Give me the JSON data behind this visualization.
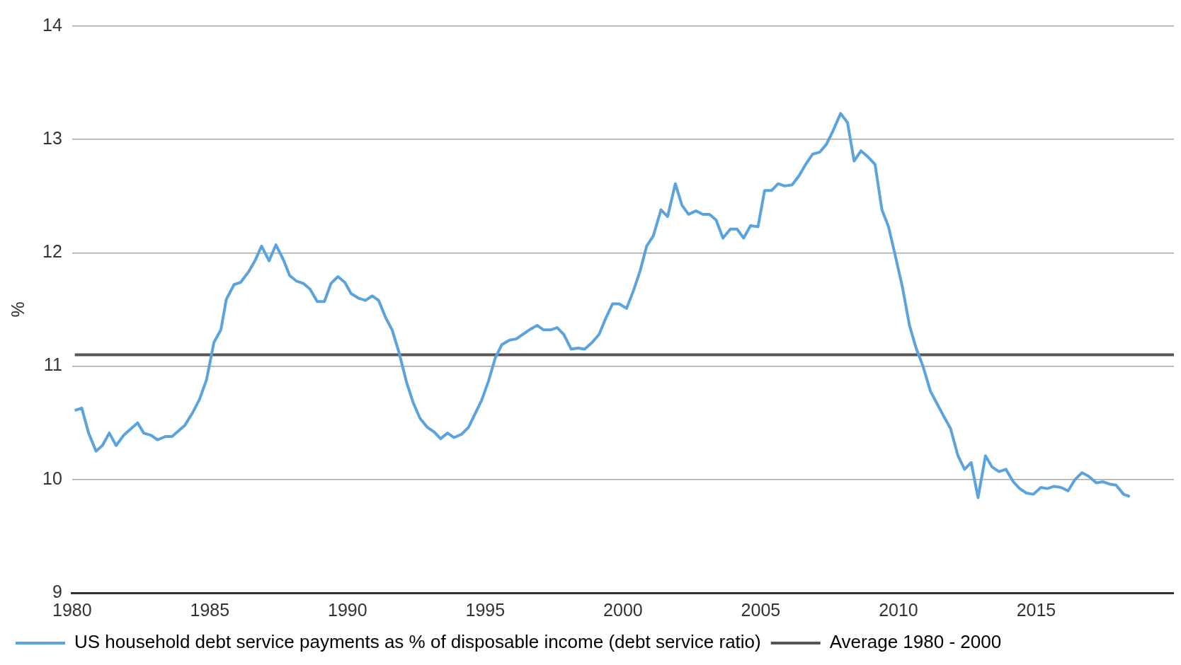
{
  "chart_data": {
    "type": "line",
    "ylabel": "%",
    "xlim": [
      1980,
      2020
    ],
    "xticks": [
      1980,
      1985,
      1990,
      1995,
      2000,
      2005,
      2010,
      2015
    ],
    "ylim": [
      9,
      14
    ],
    "yticks": [
      9,
      10,
      11,
      12,
      13,
      14
    ],
    "grid": "y",
    "legend": "bottom",
    "marker": "none",
    "line_style": "solid",
    "series": [
      {
        "name": "US household debt service payments as % of disposable income (debt service ratio)",
        "color": "#5ba3dc",
        "x": [
          1980.1,
          1980.35,
          1980.6,
          1980.87,
          1981.1,
          1981.35,
          1981.6,
          1981.87,
          1982.38,
          1982.6,
          1982.87,
          1983.1,
          1983.4,
          1983.63,
          1984.1,
          1984.4,
          1984.63,
          1984.88,
          1985.15,
          1985.4,
          1985.6,
          1985.88,
          1986.12,
          1986.4,
          1986.64,
          1986.88,
          1987.15,
          1987.4,
          1987.67,
          1987.9,
          1988.15,
          1988.4,
          1988.64,
          1988.9,
          1989.16,
          1989.4,
          1989.65,
          1989.9,
          1990.13,
          1990.4,
          1990.65,
          1990.9,
          1991.13,
          1991.38,
          1991.62,
          1991.87,
          1992.14,
          1992.38,
          1992.63,
          1992.9,
          1993.14,
          1993.38,
          1993.63,
          1993.87,
          1994.14,
          1994.39,
          1994.63,
          1994.87,
          1995.12,
          1995.36,
          1995.6,
          1995.88,
          1996.12,
          1996.36,
          1996.6,
          1996.88,
          1997.12,
          1997.37,
          1997.61,
          1997.85,
          1998.12,
          1998.37,
          1998.61,
          1998.88,
          1999.13,
          1999.37,
          1999.62,
          1999.86,
          2000.13,
          2000.37,
          2000.62,
          2000.86,
          2001.1,
          2001.38,
          2001.62,
          2001.9,
          2002.14,
          2002.38,
          2002.65,
          2002.9,
          2003.14,
          2003.38,
          2003.63,
          2003.9,
          2004.14,
          2004.38,
          2004.63,
          2004.9,
          2005.14,
          2005.39,
          2005.63,
          2005.87,
          2006.14,
          2006.39,
          2006.63,
          2006.88,
          2007.15,
          2007.39,
          2007.63,
          2007.9,
          2008.15,
          2008.39,
          2008.64,
          2008.88,
          2009.15,
          2009.4,
          2009.64,
          2009.88,
          2010.15,
          2010.4,
          2010.64,
          2010.89,
          2011.16,
          2011.4,
          2011.64,
          2011.89,
          2012.16,
          2012.4,
          2012.64,
          2012.89,
          2013.16,
          2013.4,
          2013.65,
          2013.9,
          2014.17,
          2014.4,
          2014.65,
          2014.9,
          2015.17,
          2015.4,
          2015.65,
          2015.9,
          2016.16,
          2016.41,
          2016.66,
          2016.9,
          2017.18,
          2017.42,
          2017.66,
          2017.9,
          2018.17,
          2018.4
        ],
        "values": [
          10.61,
          10.63,
          10.41,
          10.25,
          10.3,
          10.41,
          10.3,
          10.39,
          10.5,
          10.41,
          10.39,
          10.35,
          10.38,
          10.38,
          10.48,
          10.6,
          10.71,
          10.88,
          11.21,
          11.32,
          11.59,
          11.72,
          11.74,
          11.83,
          11.93,
          12.06,
          11.93,
          12.07,
          11.94,
          11.8,
          11.75,
          11.73,
          11.68,
          11.57,
          11.57,
          11.73,
          11.79,
          11.74,
          11.64,
          11.6,
          11.58,
          11.62,
          11.58,
          11.43,
          11.32,
          11.12,
          10.86,
          10.68,
          10.54,
          10.46,
          10.42,
          10.36,
          10.41,
          10.37,
          10.4,
          10.46,
          10.58,
          10.7,
          10.87,
          11.07,
          11.19,
          11.23,
          11.24,
          11.28,
          11.32,
          11.36,
          11.32,
          11.32,
          11.34,
          11.28,
          11.15,
          11.16,
          11.15,
          11.21,
          11.28,
          11.42,
          11.55,
          11.55,
          11.51,
          11.66,
          11.84,
          12.06,
          12.15,
          12.38,
          12.32,
          12.61,
          12.42,
          12.34,
          12.37,
          12.34,
          12.34,
          12.29,
          12.13,
          12.21,
          12.21,
          12.13,
          12.24,
          12.23,
          12.55,
          12.55,
          12.61,
          12.59,
          12.6,
          12.68,
          12.78,
          12.87,
          12.89,
          12.96,
          13.08,
          13.23,
          13.15,
          12.81,
          12.9,
          12.85,
          12.78,
          12.38,
          12.23,
          11.98,
          11.69,
          11.36,
          11.16,
          11.0,
          10.78,
          10.67,
          10.56,
          10.45,
          10.21,
          10.09,
          10.15,
          9.84,
          10.21,
          10.11,
          10.07,
          10.09,
          9.98,
          9.92,
          9.88,
          9.87,
          9.93,
          9.92,
          9.94,
          9.93,
          9.9,
          10.0,
          10.06,
          10.03,
          9.97,
          9.98,
          9.96,
          9.95,
          9.87,
          9.85
        ]
      },
      {
        "name": "Average 1980 - 2000",
        "color": "#5a5356",
        "x": [
          1980.1,
          2020
        ],
        "values": [
          11.1,
          11.1
        ]
      }
    ]
  }
}
